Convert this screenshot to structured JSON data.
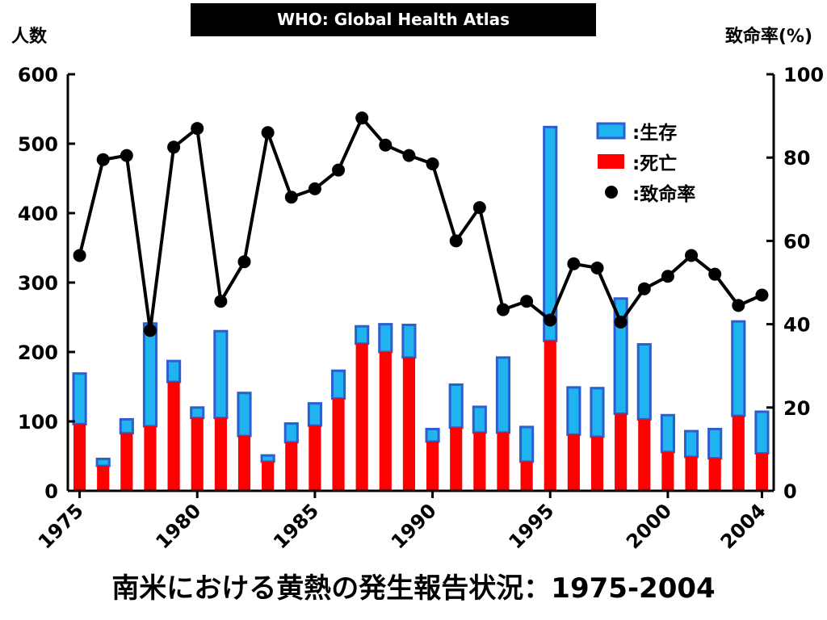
{
  "header": {
    "title": "WHO: Global Health Atlas"
  },
  "caption": "南米における黄熱の発生報告状況：1975-2004",
  "chart_data": {
    "type": "bar",
    "x": [
      1975,
      1976,
      1977,
      1978,
      1979,
      1980,
      1981,
      1982,
      1983,
      1984,
      1985,
      1986,
      1987,
      1988,
      1989,
      1990,
      1991,
      1992,
      1993,
      1994,
      1995,
      1996,
      1997,
      1998,
      1999,
      2000,
      2001,
      2002,
      2003,
      2004
    ],
    "x_tick_labels": [
      "1975",
      "1980",
      "1985",
      "1990",
      "1995",
      "2000",
      "2004"
    ],
    "x_tick_values": [
      1975,
      1980,
      1985,
      1990,
      1995,
      2000,
      2004
    ],
    "y_left": {
      "label": "人数",
      "ticks": [
        0,
        100,
        200,
        300,
        400,
        500,
        600
      ],
      "lim": [
        0,
        600
      ]
    },
    "y_right": {
      "label": "致命率(%)",
      "ticks": [
        0,
        20,
        40,
        60,
        80,
        100
      ],
      "lim": [
        0,
        100
      ]
    },
    "series": [
      {
        "name": "生存",
        "kind": "stacked-bar",
        "color": "#1fb3f0",
        "edge": "#2b5fcf",
        "values": [
          73,
          10,
          20,
          148,
          30,
          15,
          125,
          62,
          9,
          27,
          32,
          40,
          25,
          40,
          47,
          18,
          62,
          37,
          108,
          50,
          308,
          68,
          70,
          166,
          108,
          53,
          37,
          42,
          136,
          60
        ]
      },
      {
        "name": "死亡",
        "kind": "stacked-bar",
        "color": "#ff0000",
        "values": [
          96,
          36,
          83,
          93,
          157,
          105,
          105,
          79,
          42,
          70,
          94,
          133,
          212,
          200,
          192,
          71,
          91,
          84,
          84,
          42,
          216,
          81,
          78,
          111,
          103,
          56,
          49,
          47,
          108,
          54
        ]
      },
      {
        "name": "致命率",
        "kind": "line-markers",
        "color": "#000000",
        "axis": "right",
        "values": [
          56.5,
          79.5,
          80.5,
          38.5,
          82.5,
          87.0,
          45.5,
          55.0,
          86.0,
          70.5,
          72.5,
          77.0,
          89.5,
          83.0,
          80.5,
          78.5,
          60.0,
          68.0,
          43.5,
          45.5,
          41.0,
          54.5,
          53.5,
          40.5,
          48.5,
          51.5,
          56.5,
          52.0,
          44.5,
          47.0
        ]
      }
    ],
    "legend": {
      "placement": "top-right",
      "items": [
        {
          "label": ":生存",
          "symbol": "bar",
          "color": "#1fb3f0"
        },
        {
          "label": ":死亡",
          "symbol": "bar",
          "color": "#ff0000"
        },
        {
          "label": ":致命率",
          "symbol": "dot",
          "color": "#000000"
        }
      ]
    }
  }
}
